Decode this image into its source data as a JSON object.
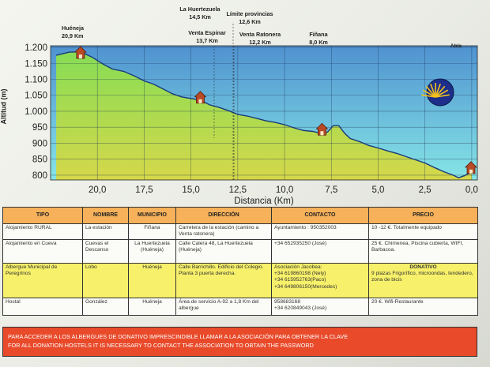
{
  "chart_data": {
    "type": "area",
    "ylabel": "Altitud (m)",
    "xlabel": "Distancia (Km)",
    "x_ticks": [
      "20,0",
      "17,5",
      "15,0",
      "12,5",
      "10,0",
      "7,5",
      "5,0",
      "2,5",
      "0,0"
    ],
    "x_tick_values": [
      20,
      17.5,
      15,
      12.5,
      10,
      7.5,
      5,
      2.5,
      0
    ],
    "y_ticks": [
      "1.200",
      "1.150",
      "1.100",
      "1.050",
      "1.000",
      "950",
      "900",
      "850",
      "800"
    ],
    "y_tick_values": [
      1200,
      1150,
      1100,
      1050,
      1000,
      950,
      900,
      850,
      800
    ],
    "xlim": [
      22.5,
      -0.3
    ],
    "ylim": [
      785,
      1205
    ],
    "profile": {
      "x": [
        22.2,
        21.5,
        20.9,
        20.3,
        19.7,
        19.2,
        18.6,
        18.0,
        17.5,
        17.0,
        16.5,
        16.0,
        15.5,
        15.0,
        14.5,
        14.0,
        13.5,
        13.0,
        12.5,
        12.0,
        11.5,
        11.0,
        10.5,
        10.0,
        9.5,
        9.0,
        8.5,
        8.0,
        7.7,
        7.4,
        7.1,
        6.8,
        6.5,
        6.0,
        5.5,
        5.0,
        4.5,
        4.0,
        3.5,
        3.0,
        2.5,
        2.0,
        1.5,
        1.0,
        0.7,
        0.4,
        0.0
      ],
      "y": [
        1175,
        1185,
        1186,
        1170,
        1148,
        1132,
        1125,
        1110,
        1095,
        1085,
        1070,
        1055,
        1045,
        1040,
        1035,
        1020,
        1012,
        1002,
        990,
        985,
        978,
        970,
        965,
        958,
        948,
        940,
        937,
        930,
        935,
        955,
        955,
        932,
        915,
        905,
        893,
        885,
        876,
        868,
        858,
        848,
        838,
        824,
        811,
        800,
        792,
        798,
        810
      ]
    },
    "places": [
      {
        "name": "Huéneja",
        "km": "20,9 Km"
      },
      {
        "name": "La Huertezuela",
        "km": "14,5 Km"
      },
      {
        "name": "Límite provincias",
        "km": "12,6 Km"
      },
      {
        "name": "Venta Espinar",
        "km": "13,7 Km"
      },
      {
        "name": "Venta Ratonera",
        "km": "12,2 Km"
      },
      {
        "name": "Fiñana",
        "km": "8,0 Km"
      },
      {
        "name": "Abla",
        "km": ""
      }
    ],
    "lodging_x": [
      20.9,
      14.5,
      8.0,
      0.0
    ],
    "lodging_y": [
      1180,
      1040,
      940,
      820
    ],
    "colors": {
      "sky_top": "#5ea0d6",
      "sky_bottom": "#7fe0e0",
      "ground_top": "#8fe05c",
      "ground_bottom": "#c8d64a",
      "line": "#1a3a7a",
      "house": "#b84a25"
    }
  },
  "table": {
    "headers": [
      "TIPO",
      "NOMBRE",
      "MUNICIPIO",
      "DIRECCIÓN",
      "CONTACTO",
      "PRECIO"
    ],
    "rows": [
      {
        "tipo": "Alojamiento RURAL",
        "nombre": "La estación",
        "municipio": "Fiñana",
        "direccion": "Carretera de la estación (camino a Venta ratonera)",
        "contacto": [
          "Ayuntamiento : 950352003"
        ],
        "precio": "10 -12 €. Totalmente equipado"
      },
      {
        "tipo": "Alojamiento en Cueva",
        "nombre": "Cuevas el Descanso",
        "municipio": "La Huertezuela (Huéneja)",
        "direccion": "Calle Calera 48, La Huertezuela (Huéneja)",
        "contacto": [
          "+34 652935250 (José)"
        ],
        "precio": "25 €. Chimenea, Piscina cubierta, WIFI, Barbacoa."
      },
      {
        "tipo": "Albergue Municipal de Peregrinos",
        "nombre": "Lobo",
        "municipio": "Huéneja",
        "direccion": "Calle Barrichillo. Edificio del Colegio. Planta 3 puerta derecha.",
        "contacto": [
          "Asociación Jacobea:",
          "+34 619860198 (Nely)",
          "+34 615952763(Paco)",
          "+34 649806150(Mercedes)"
        ],
        "precio_title": "DONATIVO",
        "precio": "9 plazas Frigorífico, microondas, tendedero, zona de bicis"
      },
      {
        "tipo": "Hostal",
        "nombre": "González",
        "municipio": "Huéneja",
        "direccion": "Área de servicio A-92 a 1,8 Km del albergue",
        "contacto": [
          "958683168",
          "+34 620849043 (José)"
        ],
        "precio": "20 €. Wifi-Restaurante"
      }
    ]
  },
  "banner": {
    "line1": "PARA ACCEDER A LOS ALBERGUES DE DONATIVO IMPRESCINDIBLE LLAMAR A LA ASOCIACIÓN PARA OBTENER LA CLAVE",
    "line2": "FOR ALL DONATION HOSTELS IT IS  NECESSARY  TO CONTACT THE ASSOCIATION TO OBTAIN THE PASSWORD"
  }
}
